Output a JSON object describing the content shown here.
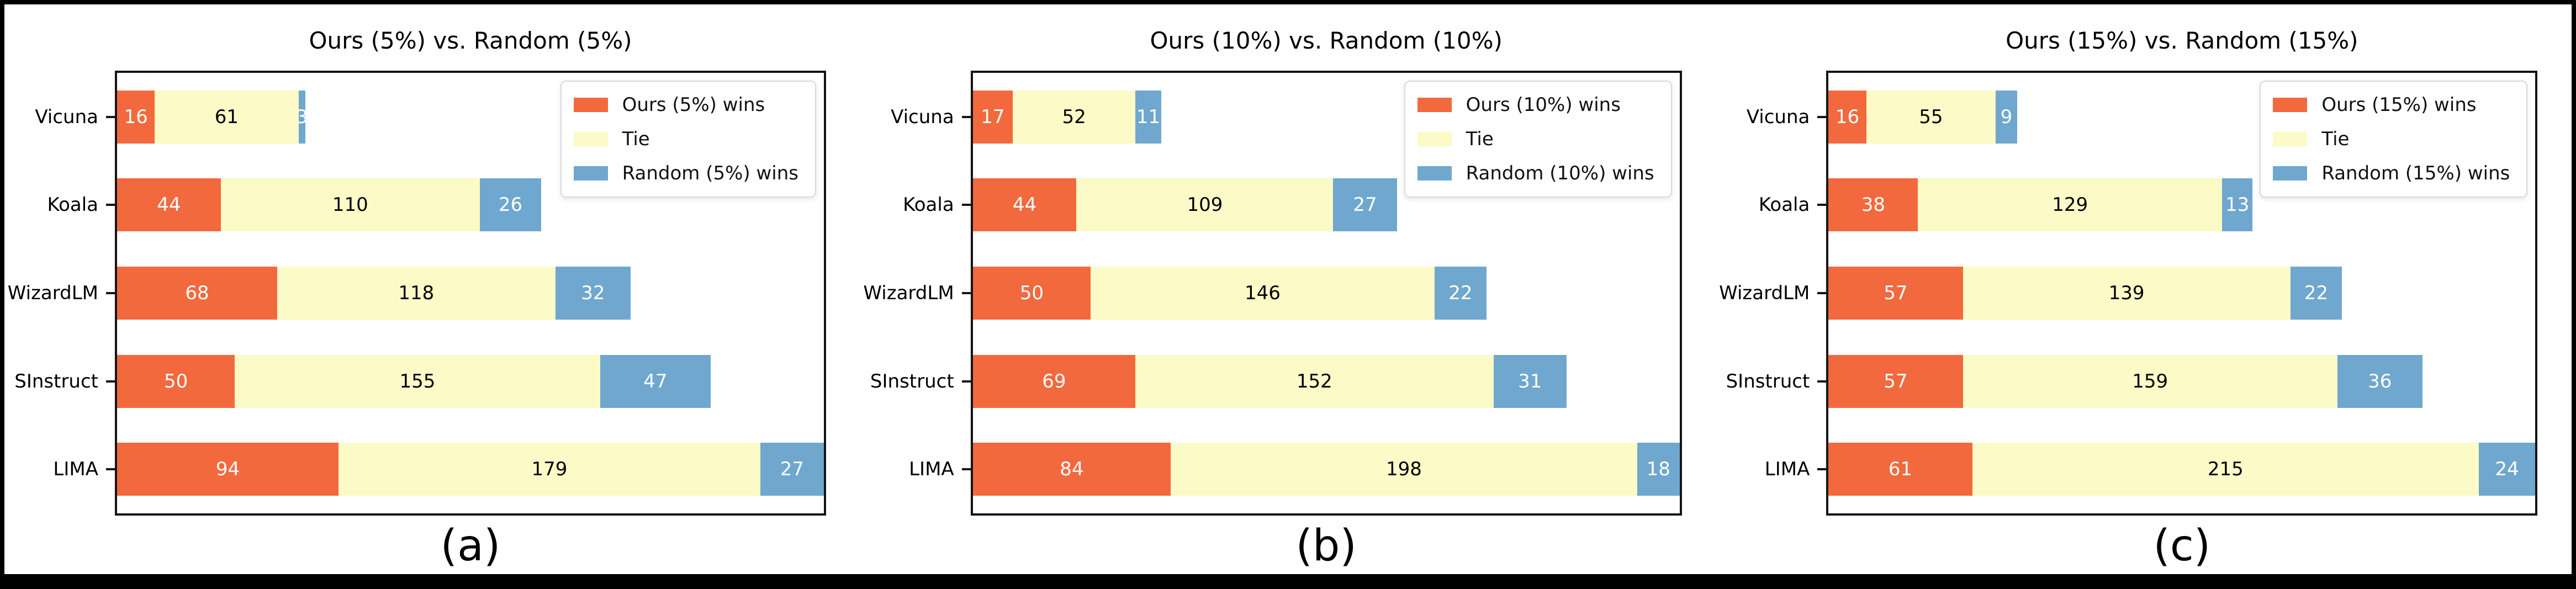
{
  "figure": {
    "frame_color": "#000000",
    "background": "#ffffff",
    "spine_color": "#141414"
  },
  "colors": {
    "ours": "#F2693E",
    "tie": "#FCFAC6",
    "random": "#6FA7CE",
    "label_on_dark": "#FFFFFF",
    "label_on_light": "#000000"
  },
  "chart_data": [
    {
      "type": "bar",
      "orientation": "horizontal-stacked",
      "title": "Ours (5%) vs. Random (5%)",
      "caption": "(a)",
      "categories": [
        "Vicuna",
        "Koala",
        "WizardLM",
        "SInstruct",
        "LIMA"
      ],
      "xlim": [
        0,
        300
      ],
      "grid": false,
      "legend_position": "upper right",
      "legend": [
        "Ours (5%) wins",
        "Tie",
        "Random (5%) wins"
      ],
      "series": [
        {
          "name": "Ours (5%) wins",
          "color_key": "ours",
          "values": [
            16,
            44,
            68,
            50,
            94
          ]
        },
        {
          "name": "Tie",
          "color_key": "tie",
          "values": [
            61,
            110,
            118,
            155,
            179
          ]
        },
        {
          "name": "Random (5%) wins",
          "color_key": "random",
          "values": [
            3,
            26,
            32,
            47,
            27
          ]
        }
      ]
    },
    {
      "type": "bar",
      "orientation": "horizontal-stacked",
      "title": "Ours (10%) vs. Random (10%)",
      "caption": "(b)",
      "categories": [
        "Vicuna",
        "Koala",
        "WizardLM",
        "SInstruct",
        "LIMA"
      ],
      "xlim": [
        0,
        300
      ],
      "grid": false,
      "legend_position": "upper right",
      "legend": [
        "Ours (10%) wins",
        "Tie",
        "Random (10%) wins"
      ],
      "series": [
        {
          "name": "Ours (10%) wins",
          "color_key": "ours",
          "values": [
            17,
            44,
            50,
            69,
            84
          ]
        },
        {
          "name": "Tie",
          "color_key": "tie",
          "values": [
            52,
            109,
            146,
            152,
            198
          ]
        },
        {
          "name": "Random (10%) wins",
          "color_key": "random",
          "values": [
            11,
            27,
            22,
            31,
            18
          ]
        }
      ]
    },
    {
      "type": "bar",
      "orientation": "horizontal-stacked",
      "title": "Ours (15%) vs. Random (15%)",
      "caption": "(c)",
      "categories": [
        "Vicuna",
        "Koala",
        "WizardLM",
        "SInstruct",
        "LIMA"
      ],
      "xlim": [
        0,
        300
      ],
      "grid": false,
      "legend_position": "upper right",
      "legend": [
        "Ours (15%) wins",
        "Tie",
        "Random (15%) wins"
      ],
      "series": [
        {
          "name": "Ours (15%) wins",
          "color_key": "ours",
          "values": [
            16,
            38,
            57,
            57,
            61
          ]
        },
        {
          "name": "Tie",
          "color_key": "tie",
          "values": [
            55,
            129,
            139,
            159,
            215
          ]
        },
        {
          "name": "Random (15%) wins",
          "color_key": "random",
          "values": [
            9,
            13,
            22,
            36,
            24
          ]
        }
      ]
    }
  ]
}
